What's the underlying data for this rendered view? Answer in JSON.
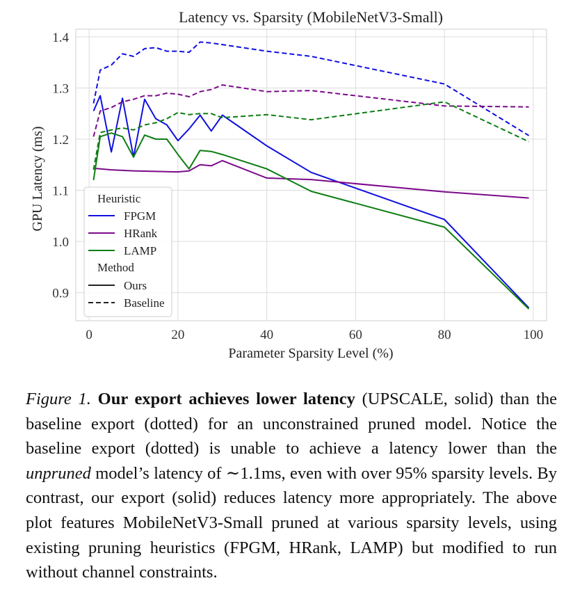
{
  "chart_data": {
    "type": "line",
    "title": "Latency vs. Sparsity (MobileNetV3-Small)",
    "xlabel": "Parameter Sparsity Level (%)",
    "ylabel": "GPU Latency (ms)",
    "xlim": [
      -3,
      103
    ],
    "ylim": [
      0.845,
      1.415
    ],
    "xticks": [
      0,
      20,
      40,
      60,
      80,
      100
    ],
    "yticks": [
      0.9,
      1.0,
      1.1,
      1.2,
      1.3,
      1.4
    ],
    "grid": true,
    "legend": {
      "placement": "lower-left",
      "heuristic_title": "Heuristic",
      "method_title": "Method",
      "heuristics": [
        {
          "name": "FPGM",
          "color": "#1010e0"
        },
        {
          "name": "HRank",
          "color": "#7b0a8a"
        },
        {
          "name": "LAMP",
          "color": "#0d7d12"
        }
      ],
      "methods": [
        {
          "name": "Ours",
          "style": "solid"
        },
        {
          "name": "Baseline",
          "style": "dashed"
        }
      ]
    },
    "series": [
      {
        "heuristic": "FPGM",
        "method": "Ours",
        "color": "#1010e0",
        "style": "solid",
        "x": [
          1,
          2.5,
          5,
          7.5,
          10,
          12.5,
          15,
          17.5,
          20,
          22.5,
          25,
          27.5,
          30,
          40,
          50,
          80,
          99
        ],
        "y": [
          1.255,
          1.285,
          1.175,
          1.28,
          1.165,
          1.278,
          1.24,
          1.228,
          1.197,
          1.22,
          1.247,
          1.216,
          1.247,
          1.187,
          1.135,
          1.043,
          0.87
        ]
      },
      {
        "heuristic": "HRank",
        "method": "Ours",
        "color": "#7b0a8a",
        "style": "solid",
        "x": [
          1,
          5,
          10,
          15,
          20,
          22.5,
          25,
          27.5,
          30,
          40,
          50,
          80,
          99
        ],
        "y": [
          1.143,
          1.14,
          1.138,
          1.137,
          1.136,
          1.138,
          1.15,
          1.148,
          1.158,
          1.124,
          1.121,
          1.097,
          1.085
        ]
      },
      {
        "heuristic": "LAMP",
        "method": "Ours",
        "color": "#0d7d12",
        "style": "solid",
        "x": [
          1,
          2.5,
          5,
          7.5,
          10,
          12.5,
          15,
          17.5,
          20,
          22.5,
          25,
          27.5,
          30,
          40,
          50,
          80,
          99
        ],
        "y": [
          1.12,
          1.205,
          1.212,
          1.205,
          1.165,
          1.208,
          1.2,
          1.2,
          1.17,
          1.142,
          1.178,
          1.176,
          1.17,
          1.142,
          1.098,
          1.028,
          0.868
        ]
      },
      {
        "heuristic": "FPGM",
        "method": "Baseline",
        "color": "#1010e0",
        "style": "dashed",
        "x": [
          1,
          2.5,
          5,
          7.5,
          10,
          12.5,
          15,
          17.5,
          20,
          22.5,
          25,
          27.5,
          30,
          40,
          50,
          80,
          99
        ],
        "y": [
          1.27,
          1.335,
          1.345,
          1.367,
          1.362,
          1.377,
          1.379,
          1.372,
          1.372,
          1.37,
          1.39,
          1.388,
          1.385,
          1.372,
          1.362,
          1.308,
          1.207
        ]
      },
      {
        "heuristic": "HRank",
        "method": "Baseline",
        "color": "#7b0a8a",
        "style": "dashed",
        "x": [
          1,
          2.5,
          5,
          7.5,
          10,
          12.5,
          15,
          17.5,
          20,
          22.5,
          25,
          27.5,
          30,
          40,
          50,
          80,
          99
        ],
        "y": [
          1.205,
          1.255,
          1.262,
          1.273,
          1.278,
          1.285,
          1.285,
          1.29,
          1.288,
          1.283,
          1.293,
          1.297,
          1.306,
          1.293,
          1.295,
          1.265,
          1.263
        ]
      },
      {
        "heuristic": "LAMP",
        "method": "Baseline",
        "color": "#0d7d12",
        "style": "dashed",
        "x": [
          1,
          2.5,
          5,
          7.5,
          10,
          12.5,
          15,
          17.5,
          20,
          22.5,
          25,
          27.5,
          30,
          40,
          50,
          80,
          99
        ],
        "y": [
          1.14,
          1.213,
          1.218,
          1.222,
          1.218,
          1.228,
          1.232,
          1.24,
          1.252,
          1.248,
          1.25,
          1.25,
          1.242,
          1.248,
          1.238,
          1.273,
          1.195
        ]
      }
    ]
  },
  "caption": {
    "lead": "Figure 1.",
    "bold": "Our export achieves lower latency",
    "part1": "(UPSCALE, solid) than the baseline export (dotted) for an unconstrained pruned model. Notice the baseline export (dotted) is unable to achieve a latency lower than the",
    "emphasis": "unpruned",
    "part2": "model’s latency of ∼1.1ms, even with over 95% sparsity levels. By contrast, our export (solid) reduces latency more appropriately. The above plot features MobileNetV3-Small pruned at various sparsity levels, using existing pruning heuristics (FPGM, HRank, LAMP) but modified to run without channel constraints."
  }
}
